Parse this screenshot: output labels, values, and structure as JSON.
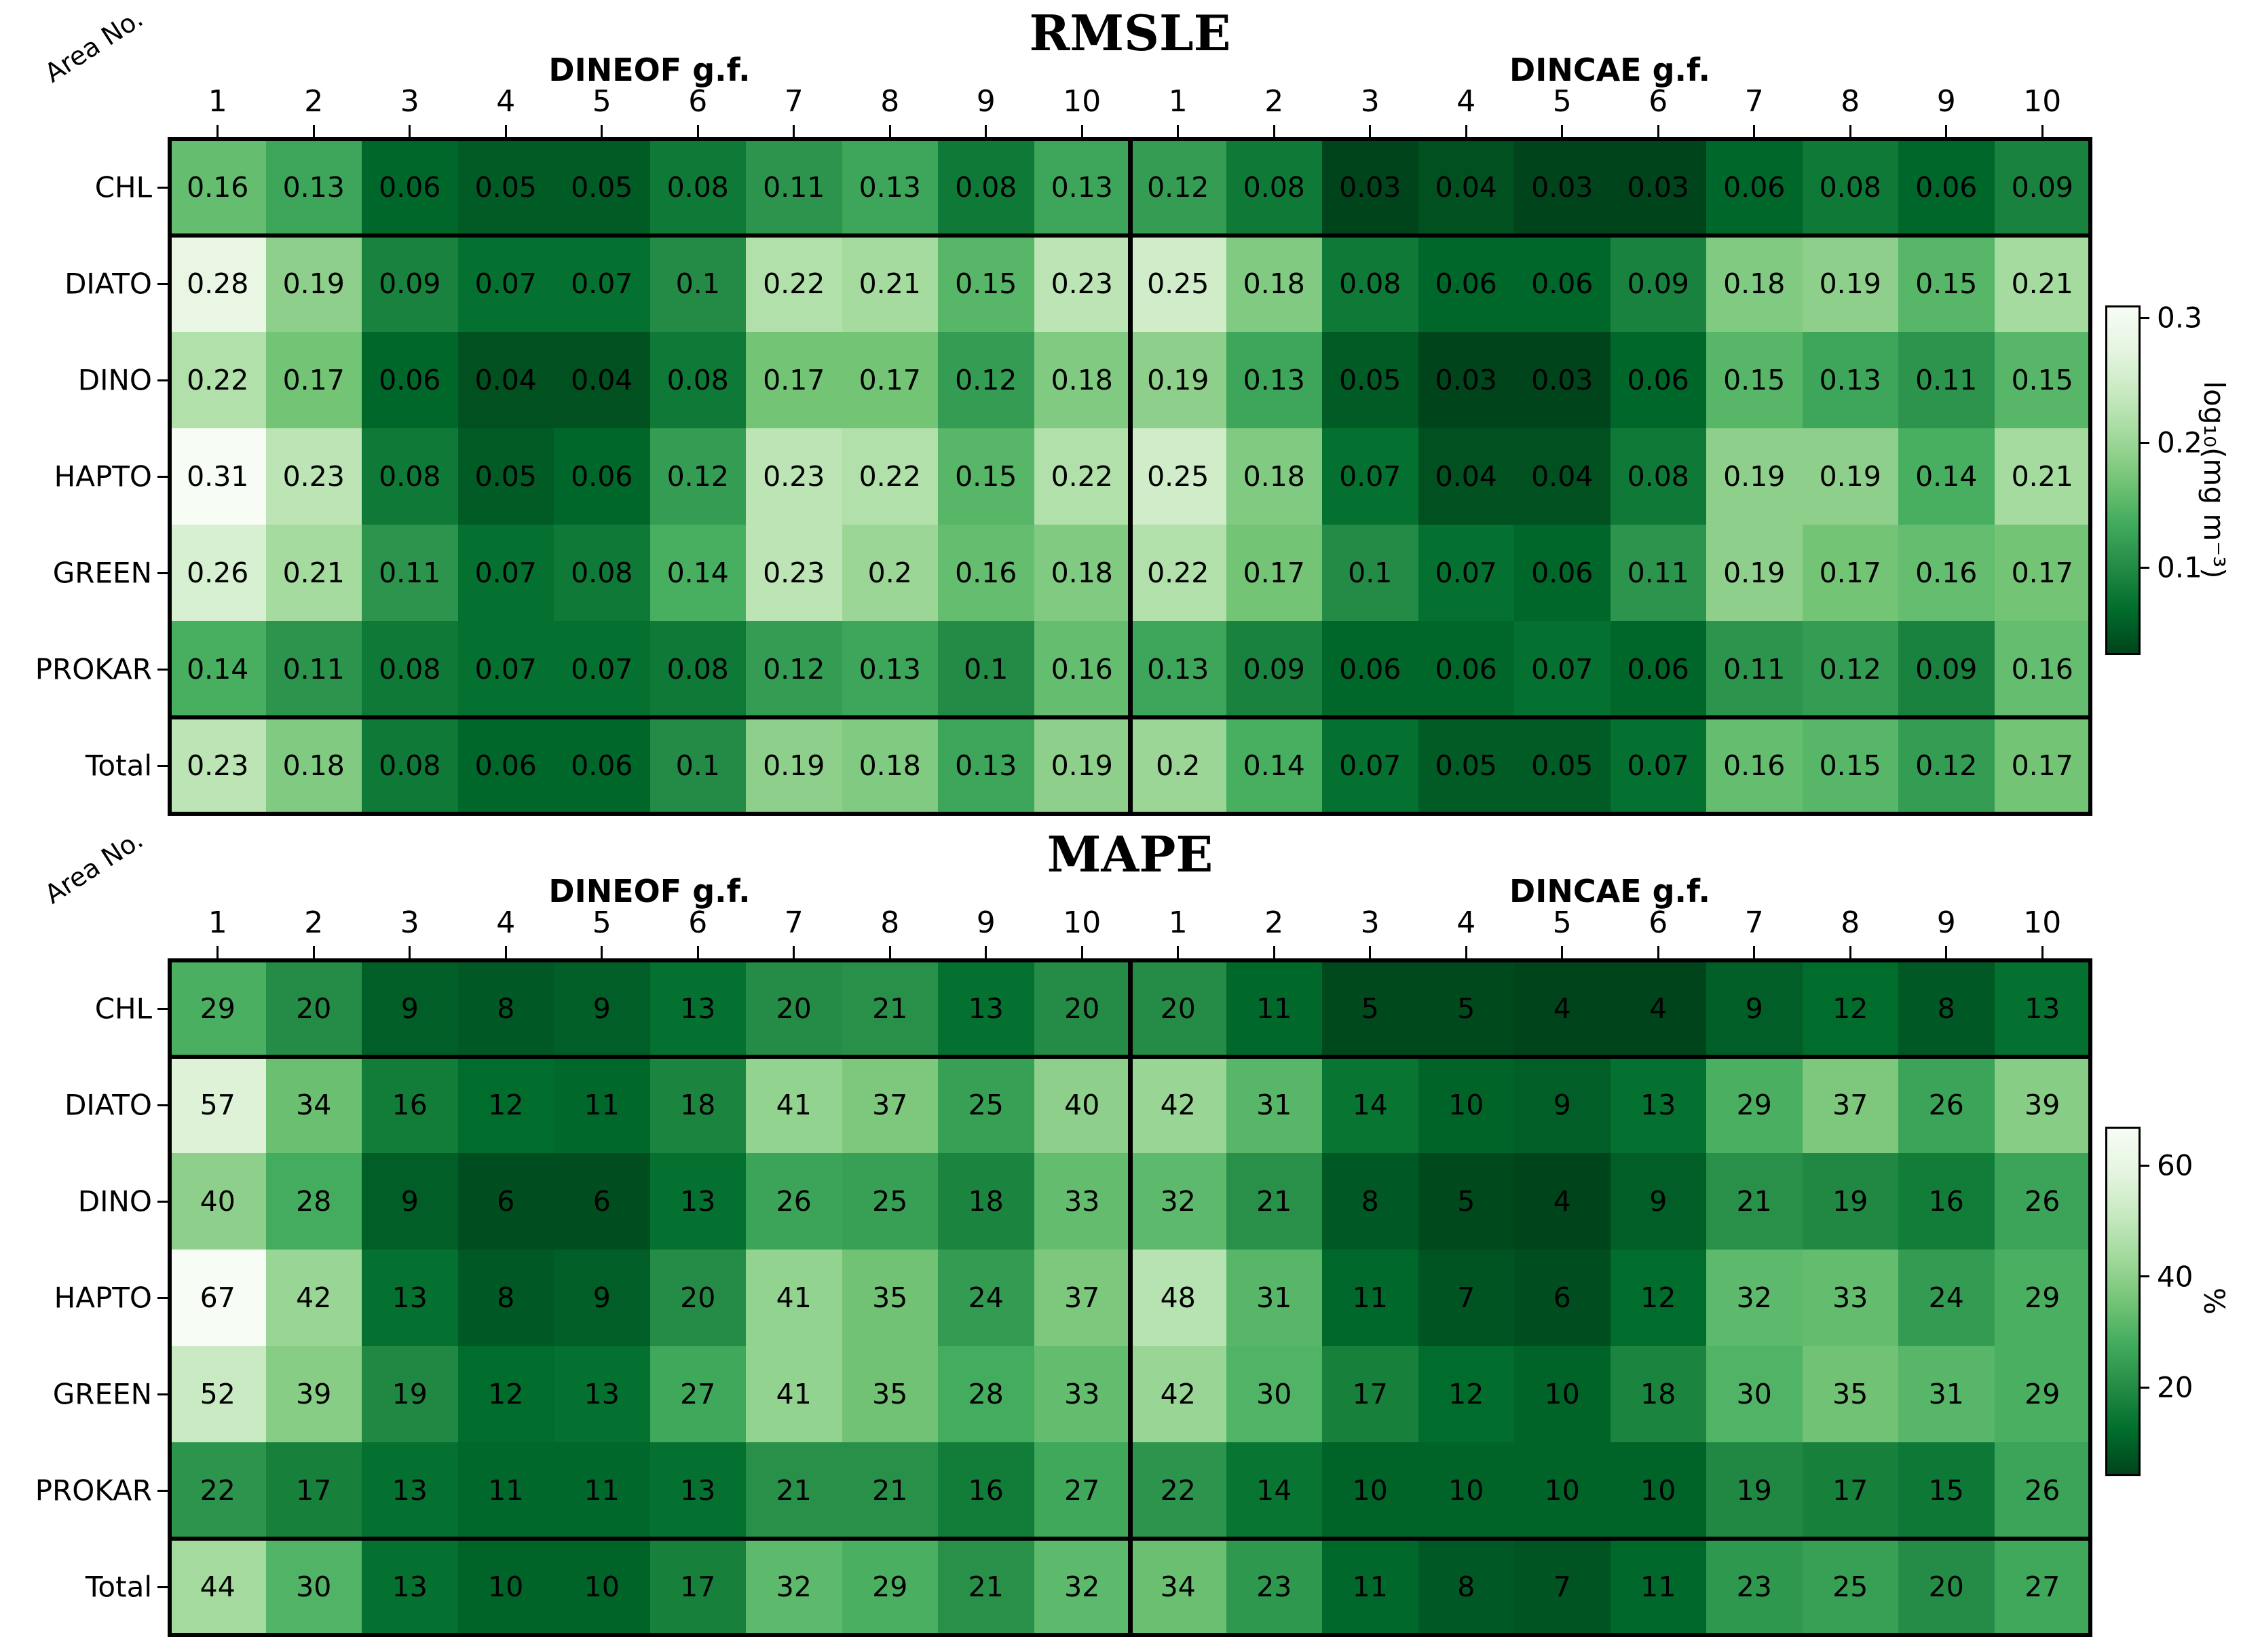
{
  "figure": {
    "background": "#ffffff"
  },
  "colormap": {
    "name": "greens-reversed",
    "description": "low values dark green, high values near white",
    "stops": [
      "#f7fcf5",
      "#e5f5e0",
      "#c7e9c0",
      "#a1d99b",
      "#74c476",
      "#41ab5d",
      "#238b45",
      "#006d2c",
      "#00441b"
    ]
  },
  "chart_data": [
    {
      "type": "heatmap",
      "title": "RMSLE",
      "corner_label": "Area No.",
      "col_groups": [
        {
          "label": "DINEOF g.f."
        },
        {
          "label": "DINCAE g.f."
        }
      ],
      "col_headers": [
        "1",
        "2",
        "3",
        "4",
        "5",
        "6",
        "7",
        "8",
        "9",
        "10",
        "1",
        "2",
        "3",
        "4",
        "5",
        "6",
        "7",
        "8",
        "9",
        "10"
      ],
      "rows": [
        "CHL",
        "DIATO",
        "DINO",
        "HAPTO",
        "GREEN",
        "PROKAR",
        "Total"
      ],
      "values": [
        [
          0.16,
          0.13,
          0.06,
          0.05,
          0.05,
          0.08,
          0.11,
          0.13,
          0.08,
          0.13,
          0.12,
          0.08,
          0.03,
          0.04,
          0.03,
          0.03,
          0.06,
          0.08,
          0.06,
          0.09
        ],
        [
          0.28,
          0.19,
          0.09,
          0.07,
          0.07,
          0.1,
          0.22,
          0.21,
          0.15,
          0.23,
          0.25,
          0.18,
          0.08,
          0.06,
          0.06,
          0.09,
          0.18,
          0.19,
          0.15,
          0.21
        ],
        [
          0.22,
          0.17,
          0.06,
          0.04,
          0.04,
          0.08,
          0.17,
          0.17,
          0.12,
          0.18,
          0.19,
          0.13,
          0.05,
          0.03,
          0.03,
          0.06,
          0.15,
          0.13,
          0.11,
          0.15
        ],
        [
          0.31,
          0.23,
          0.08,
          0.05,
          0.06,
          0.12,
          0.23,
          0.22,
          0.15,
          0.22,
          0.25,
          0.18,
          0.07,
          0.04,
          0.04,
          0.08,
          0.19,
          0.19,
          0.14,
          0.21
        ],
        [
          0.26,
          0.21,
          0.11,
          0.07,
          0.08,
          0.14,
          0.23,
          0.2,
          0.16,
          0.18,
          0.22,
          0.17,
          0.1,
          0.07,
          0.06,
          0.11,
          0.19,
          0.17,
          0.16,
          0.17
        ],
        [
          0.14,
          0.11,
          0.08,
          0.07,
          0.07,
          0.08,
          0.12,
          0.13,
          0.1,
          0.16,
          0.13,
          0.09,
          0.06,
          0.06,
          0.07,
          0.06,
          0.11,
          0.12,
          0.09,
          0.16
        ],
        [
          0.23,
          0.18,
          0.08,
          0.06,
          0.06,
          0.1,
          0.19,
          0.18,
          0.13,
          0.19,
          0.2,
          0.14,
          0.07,
          0.05,
          0.05,
          0.07,
          0.16,
          0.15,
          0.12,
          0.17
        ]
      ],
      "vmin": 0.03,
      "vmax": 0.31,
      "colorbar": {
        "label": "log₁₀(mg m⁻³)",
        "ticks": [
          0.3,
          0.2,
          0.1
        ]
      }
    },
    {
      "type": "heatmap",
      "title": "MAPE",
      "corner_label": "Area No.",
      "col_groups": [
        {
          "label": "DINEOF g.f."
        },
        {
          "label": "DINCAE g.f."
        }
      ],
      "col_headers": [
        "1",
        "2",
        "3",
        "4",
        "5",
        "6",
        "7",
        "8",
        "9",
        "10",
        "1",
        "2",
        "3",
        "4",
        "5",
        "6",
        "7",
        "8",
        "9",
        "10"
      ],
      "rows": [
        "CHL",
        "DIATO",
        "DINO",
        "HAPTO",
        "GREEN",
        "PROKAR",
        "Total"
      ],
      "values": [
        [
          29,
          20,
          9,
          8,
          9,
          13,
          20,
          21,
          13,
          20,
          20,
          11,
          5,
          5,
          4,
          4,
          9,
          12,
          8,
          13
        ],
        [
          57,
          34,
          16,
          12,
          11,
          18,
          41,
          37,
          25,
          40,
          42,
          31,
          14,
          10,
          9,
          13,
          29,
          37,
          26,
          39
        ],
        [
          40,
          28,
          9,
          6,
          6,
          13,
          26,
          25,
          18,
          33,
          32,
          21,
          8,
          5,
          4,
          9,
          21,
          19,
          16,
          26
        ],
        [
          67,
          42,
          13,
          8,
          9,
          20,
          41,
          35,
          24,
          37,
          48,
          31,
          11,
          7,
          6,
          12,
          32,
          33,
          24,
          29
        ],
        [
          52,
          39,
          19,
          12,
          13,
          27,
          41,
          35,
          28,
          33,
          42,
          30,
          17,
          12,
          10,
          18,
          30,
          35,
          31,
          29
        ],
        [
          22,
          17,
          13,
          11,
          11,
          13,
          21,
          21,
          16,
          27,
          22,
          14,
          10,
          10,
          10,
          10,
          19,
          17,
          15,
          26
        ],
        [
          44,
          30,
          13,
          10,
          10,
          17,
          32,
          29,
          21,
          32,
          34,
          23,
          11,
          8,
          7,
          11,
          23,
          25,
          20,
          27
        ]
      ],
      "vmin": 4,
      "vmax": 67,
      "colorbar": {
        "label": "%",
        "ticks": [
          60,
          40,
          20
        ]
      }
    }
  ]
}
